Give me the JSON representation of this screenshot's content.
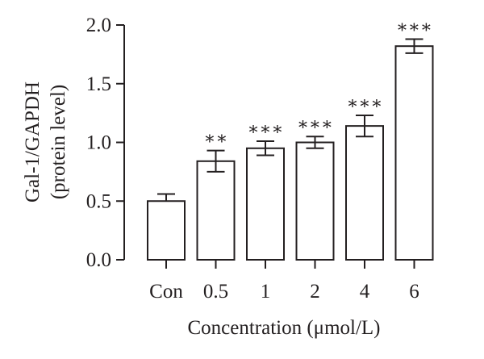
{
  "chart_data": {
    "type": "bar",
    "categories": [
      "Con",
      "0.5",
      "1",
      "2",
      "4",
      "6"
    ],
    "values": [
      0.5,
      0.84,
      0.95,
      1.0,
      1.14,
      1.82
    ],
    "errors": [
      0.06,
      0.09,
      0.06,
      0.05,
      0.09,
      0.06
    ],
    "significance": [
      "",
      "**",
      "***",
      "***",
      "***",
      "***"
    ],
    "ylabel_lines": [
      "Gal-1/GAPDH",
      "(protein level)"
    ],
    "xlabel": "Concentration (μmol/L)",
    "ylim": [
      0,
      2.0
    ],
    "yticks": [
      "0.0",
      "0.5",
      "1.0",
      "1.5",
      "2.0"
    ],
    "ytick_values": [
      0,
      0.5,
      1.0,
      1.5,
      2.0
    ],
    "bar_fill": "#ffffff",
    "line_color": "#231f20"
  }
}
